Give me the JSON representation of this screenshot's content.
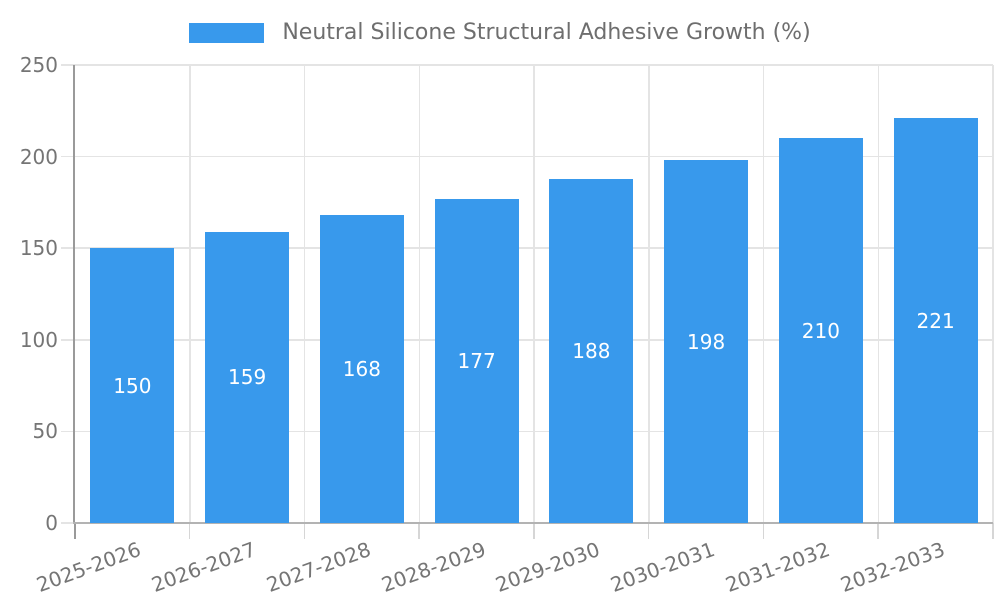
{
  "legend": {
    "items": [
      {
        "label": "Neutral Silicone Structural Adhesive Growth (%)",
        "color": "#3899ec"
      }
    ]
  },
  "chart_data": {
    "type": "bar",
    "title": "Neutral Silicone Structural Adhesive Growth (%)",
    "categories": [
      "2025-2026",
      "2026-2027",
      "2027-2028",
      "2028-2029",
      "2029-2030",
      "2030-2031",
      "2031-2032",
      "2032-2033"
    ],
    "series": [
      {
        "name": "Neutral Silicone Structural Adhesive Growth (%)",
        "values": [
          150,
          159,
          168,
          177,
          188,
          198,
          210,
          221
        ],
        "color": "#3899ec"
      }
    ],
    "xlabel": "",
    "ylabel": "",
    "ylim": [
      0,
      250
    ],
    "yticks": [
      0,
      50,
      100,
      150,
      200,
      250
    ],
    "grid": true,
    "legend_position": "top",
    "value_labels": {
      "show": true,
      "position": "center",
      "color": "#ffffff"
    }
  },
  "style": {
    "bar_color": "#3899ec",
    "grid_color": "#e4e4e4",
    "x_axis_color": "#b3b3b3",
    "y_axis_color": "#9a9a9a",
    "x_tick_color": "#d6d6d6",
    "y_tick_color": "#e4e4e4",
    "axis_text_color": "#757575",
    "legend_text_color": "#6e6e6e",
    "value_label_color": "#ffffff",
    "background": "#ffffff"
  }
}
